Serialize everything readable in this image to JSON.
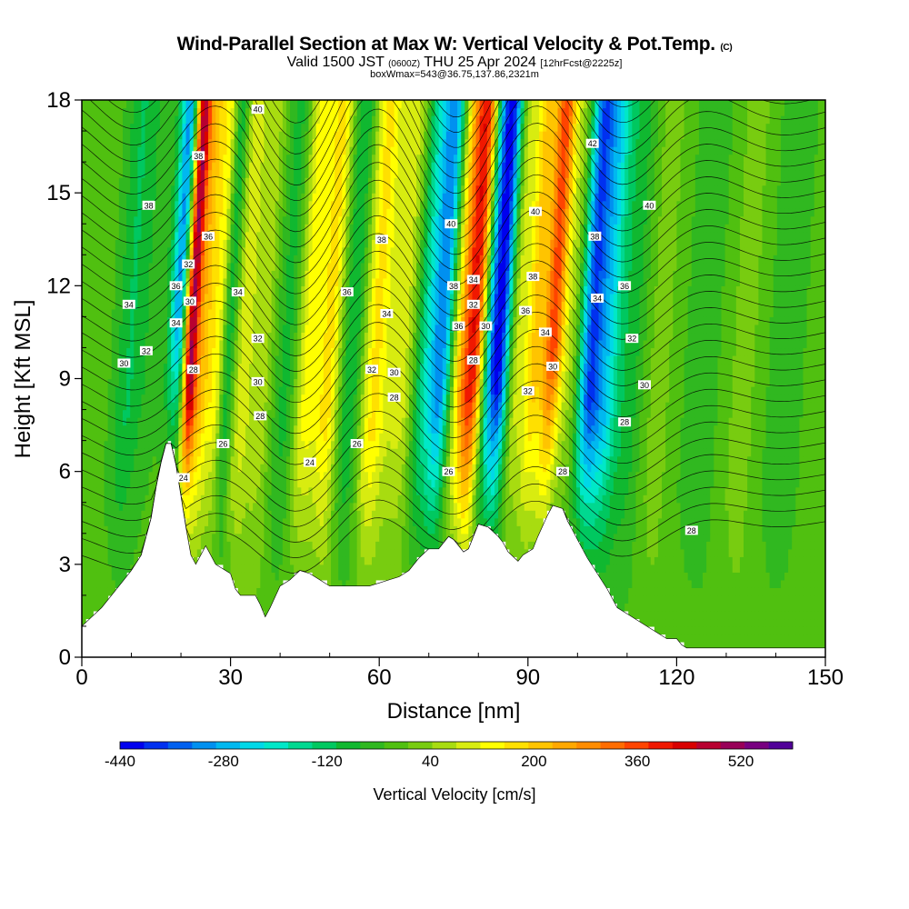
{
  "title": {
    "main": "Wind-Parallel Section at Max W: Vertical Velocity & Pot.Temp.",
    "main_mark": "(C)",
    "valid_a": "Valid 1500 JST",
    "valid_zulu": "(0600Z)",
    "valid_b": "THU 25 Apr 2024",
    "forecast": "[12hrFcst@2225z]",
    "box": "boxWmax=543@36.75,137.86,2321m"
  },
  "chart_data": {
    "type": "heatmap",
    "xlabel": "Distance [nm]",
    "ylabel": "Height [Kft MSL]",
    "xlim": [
      0,
      150
    ],
    "ylim": [
      0,
      18
    ],
    "x_ticks": [
      "0",
      "30",
      "60",
      "90",
      "120",
      "150"
    ],
    "y_ticks": [
      "0",
      "3",
      "6",
      "9",
      "12",
      "15",
      "18"
    ],
    "colorbar": {
      "label": "Vertical Velocity [cm/s]",
      "range": [
        -440,
        600
      ],
      "step": 40,
      "tick_labels": [
        "-440",
        "-280",
        "-120",
        "40",
        "200",
        "360",
        "520"
      ],
      "colors": [
        "#0000ee",
        "#0030f0",
        "#0060f0",
        "#0090f0",
        "#00b8f0",
        "#00d8e8",
        "#00e8c8",
        "#00d890",
        "#00c860",
        "#10b830",
        "#30b820",
        "#50c010",
        "#78cc10",
        "#a8dc10",
        "#d8ec10",
        "#ffff00",
        "#ffe000",
        "#ffc400",
        "#ffa800",
        "#ff8c00",
        "#ff6c00",
        "#ff4400",
        "#f01800",
        "#d80000",
        "#b80030",
        "#980058",
        "#780080",
        "#500098"
      ]
    },
    "terrain_kft": [
      [
        0,
        1.0
      ],
      [
        2,
        1.3
      ],
      [
        4,
        1.6
      ],
      [
        6,
        2.0
      ],
      [
        8,
        2.4
      ],
      [
        10,
        2.8
      ],
      [
        12,
        3.3
      ],
      [
        14,
        4.5
      ],
      [
        15,
        5.5
      ],
      [
        16,
        6.3
      ],
      [
        17,
        6.9
      ],
      [
        18,
        6.9
      ],
      [
        19,
        6.2
      ],
      [
        20,
        5.2
      ],
      [
        21,
        4.2
      ],
      [
        22,
        3.3
      ],
      [
        23,
        3.0
      ],
      [
        24,
        3.3
      ],
      [
        25,
        3.6
      ],
      [
        26,
        3.3
      ],
      [
        27,
        3.0
      ],
      [
        28,
        2.9
      ],
      [
        30,
        2.7
      ],
      [
        31,
        2.2
      ],
      [
        32,
        2.0
      ],
      [
        35,
        2.0
      ],
      [
        36,
        1.7
      ],
      [
        37,
        1.3
      ],
      [
        38,
        1.6
      ],
      [
        40,
        2.3
      ],
      [
        42,
        2.5
      ],
      [
        44,
        2.8
      ],
      [
        46,
        2.7
      ],
      [
        48,
        2.5
      ],
      [
        50,
        2.3
      ],
      [
        55,
        2.3
      ],
      [
        58,
        2.3
      ],
      [
        60,
        2.4
      ],
      [
        62,
        2.5
      ],
      [
        64,
        2.6
      ],
      [
        66,
        2.8
      ],
      [
        68,
        3.2
      ],
      [
        70,
        3.5
      ],
      [
        72,
        3.5
      ],
      [
        74,
        3.9
      ],
      [
        75,
        3.8
      ],
      [
        77,
        3.4
      ],
      [
        78,
        3.5
      ],
      [
        80,
        4.3
      ],
      [
        82,
        4.2
      ],
      [
        84,
        3.9
      ],
      [
        85,
        3.7
      ],
      [
        86,
        3.4
      ],
      [
        88,
        3.1
      ],
      [
        89,
        3.3
      ],
      [
        91,
        3.5
      ],
      [
        92,
        3.9
      ],
      [
        94,
        4.6
      ],
      [
        95,
        4.9
      ],
      [
        97,
        4.8
      ],
      [
        98,
        4.4
      ],
      [
        99,
        4.1
      ],
      [
        100,
        3.8
      ],
      [
        102,
        3.2
      ],
      [
        104,
        2.7
      ],
      [
        106,
        2.2
      ],
      [
        108,
        1.6
      ],
      [
        110,
        1.4
      ],
      [
        112,
        1.2
      ],
      [
        115,
        0.9
      ],
      [
        118,
        0.6
      ],
      [
        120,
        0.6
      ],
      [
        121,
        0.4
      ],
      [
        122,
        0.3
      ],
      [
        150,
        0.3
      ]
    ],
    "velocity_bands": [
      {
        "x": 8,
        "w": 3,
        "v": -100
      },
      {
        "x": 13,
        "w": 3,
        "v": -40
      },
      {
        "x": 17.5,
        "w": 1.8,
        "v": -320
      },
      {
        "x": 20.3,
        "w": 1.6,
        "v": 560
      },
      {
        "x": 23,
        "w": 1.5,
        "v": 200
      },
      {
        "x": 25.5,
        "w": 1.7,
        "v": 160
      },
      {
        "x": 28,
        "w": 1.5,
        "v": -120
      },
      {
        "x": 31,
        "w": 2.5,
        "v": 120
      },
      {
        "x": 35,
        "w": 2,
        "v": 80
      },
      {
        "x": 40,
        "w": 2.5,
        "v": -80
      },
      {
        "x": 44,
        "w": 2.5,
        "v": 160
      },
      {
        "x": 48.5,
        "w": 2.5,
        "v": 200
      },
      {
        "x": 53,
        "w": 3,
        "v": -120
      },
      {
        "x": 57.5,
        "w": 3,
        "v": 200
      },
      {
        "x": 63.5,
        "w": 3,
        "v": 120
      },
      {
        "x": 67.5,
        "w": 2.5,
        "v": -160
      },
      {
        "x": 71,
        "w": 2.3,
        "v": -320
      },
      {
        "x": 74.5,
        "w": 2.2,
        "v": 160
      },
      {
        "x": 77.5,
        "w": 2.4,
        "v": 440
      },
      {
        "x": 80.5,
        "w": 1.8,
        "v": -240
      },
      {
        "x": 82.8,
        "w": 2,
        "v": -400
      },
      {
        "x": 86,
        "w": 2.2,
        "v": 120
      },
      {
        "x": 89.5,
        "w": 1.8,
        "v": 200
      },
      {
        "x": 93.3,
        "w": 2.2,
        "v": 400
      },
      {
        "x": 97.5,
        "w": 2,
        "v": 80
      },
      {
        "x": 101,
        "w": 2.5,
        "v": -360
      },
      {
        "x": 104.5,
        "w": 2.5,
        "v": -200
      },
      {
        "x": 109,
        "w": 3,
        "v": -80
      },
      {
        "x": 115,
        "w": 3,
        "v": 40
      },
      {
        "x": 124,
        "w": 5,
        "v": -40
      },
      {
        "x": 132,
        "w": 4,
        "v": 40
      },
      {
        "x": 140,
        "w": 5,
        "v": -40
      }
    ],
    "theta_labels": [
      {
        "t": "40",
        "x": 35.5,
        "y": 17.7
      },
      {
        "t": "38",
        "x": 23.5,
        "y": 16.2
      },
      {
        "t": "38",
        "x": 13.5,
        "y": 14.6
      },
      {
        "t": "36",
        "x": 25.5,
        "y": 13.6
      },
      {
        "t": "32",
        "x": 21.5,
        "y": 12.7
      },
      {
        "t": "36",
        "x": 19,
        "y": 12.0
      },
      {
        "t": "30",
        "x": 21.8,
        "y": 11.5
      },
      {
        "t": "34",
        "x": 9.5,
        "y": 11.4
      },
      {
        "t": "34",
        "x": 31.5,
        "y": 11.8
      },
      {
        "t": "34",
        "x": 19,
        "y": 10.8
      },
      {
        "t": "32",
        "x": 13,
        "y": 9.9
      },
      {
        "t": "30",
        "x": 8.5,
        "y": 9.5
      },
      {
        "t": "32",
        "x": 35.5,
        "y": 10.3
      },
      {
        "t": "28",
        "x": 22.5,
        "y": 9.3
      },
      {
        "t": "30",
        "x": 35.5,
        "y": 8.9
      },
      {
        "t": "28",
        "x": 36,
        "y": 7.8
      },
      {
        "t": "26",
        "x": 28.5,
        "y": 6.9
      },
      {
        "t": "24",
        "x": 20.5,
        "y": 5.8
      },
      {
        "t": "24",
        "x": 46,
        "y": 6.3
      },
      {
        "t": "38",
        "x": 60.5,
        "y": 13.5
      },
      {
        "t": "36",
        "x": 53.5,
        "y": 11.8
      },
      {
        "t": "34",
        "x": 61.5,
        "y": 11.1
      },
      {
        "t": "32",
        "x": 58.5,
        "y": 9.3
      },
      {
        "t": "30",
        "x": 63,
        "y": 9.2
      },
      {
        "t": "28",
        "x": 63,
        "y": 8.4
      },
      {
        "t": "26",
        "x": 55.5,
        "y": 6.9
      },
      {
        "t": "40",
        "x": 74.5,
        "y": 14.0
      },
      {
        "t": "38",
        "x": 75,
        "y": 12.0
      },
      {
        "t": "34",
        "x": 79,
        "y": 12.2
      },
      {
        "t": "32",
        "x": 79,
        "y": 11.4
      },
      {
        "t": "36",
        "x": 76,
        "y": 10.7
      },
      {
        "t": "30",
        "x": 81.5,
        "y": 10.7
      },
      {
        "t": "28",
        "x": 79,
        "y": 9.6
      },
      {
        "t": "26",
        "x": 74,
        "y": 6.0
      },
      {
        "t": "40",
        "x": 91.5,
        "y": 14.4
      },
      {
        "t": "38",
        "x": 91,
        "y": 12.3
      },
      {
        "t": "36",
        "x": 89.5,
        "y": 11.2
      },
      {
        "t": "34",
        "x": 93.5,
        "y": 10.5
      },
      {
        "t": "32",
        "x": 90,
        "y": 8.6
      },
      {
        "t": "30",
        "x": 95,
        "y": 9.4
      },
      {
        "t": "28",
        "x": 97,
        "y": 6.0
      },
      {
        "t": "42",
        "x": 103,
        "y": 16.6
      },
      {
        "t": "40",
        "x": 114.5,
        "y": 14.6
      },
      {
        "t": "38",
        "x": 103.5,
        "y": 13.6
      },
      {
        "t": "36",
        "x": 109.5,
        "y": 12.0
      },
      {
        "t": "34",
        "x": 104,
        "y": 11.6
      },
      {
        "t": "32",
        "x": 111,
        "y": 10.3
      },
      {
        "t": "30",
        "x": 113.5,
        "y": 8.8
      },
      {
        "t": "28",
        "x": 109.5,
        "y": 7.6
      },
      {
        "t": "28",
        "x": 123,
        "y": 4.1
      }
    ]
  }
}
